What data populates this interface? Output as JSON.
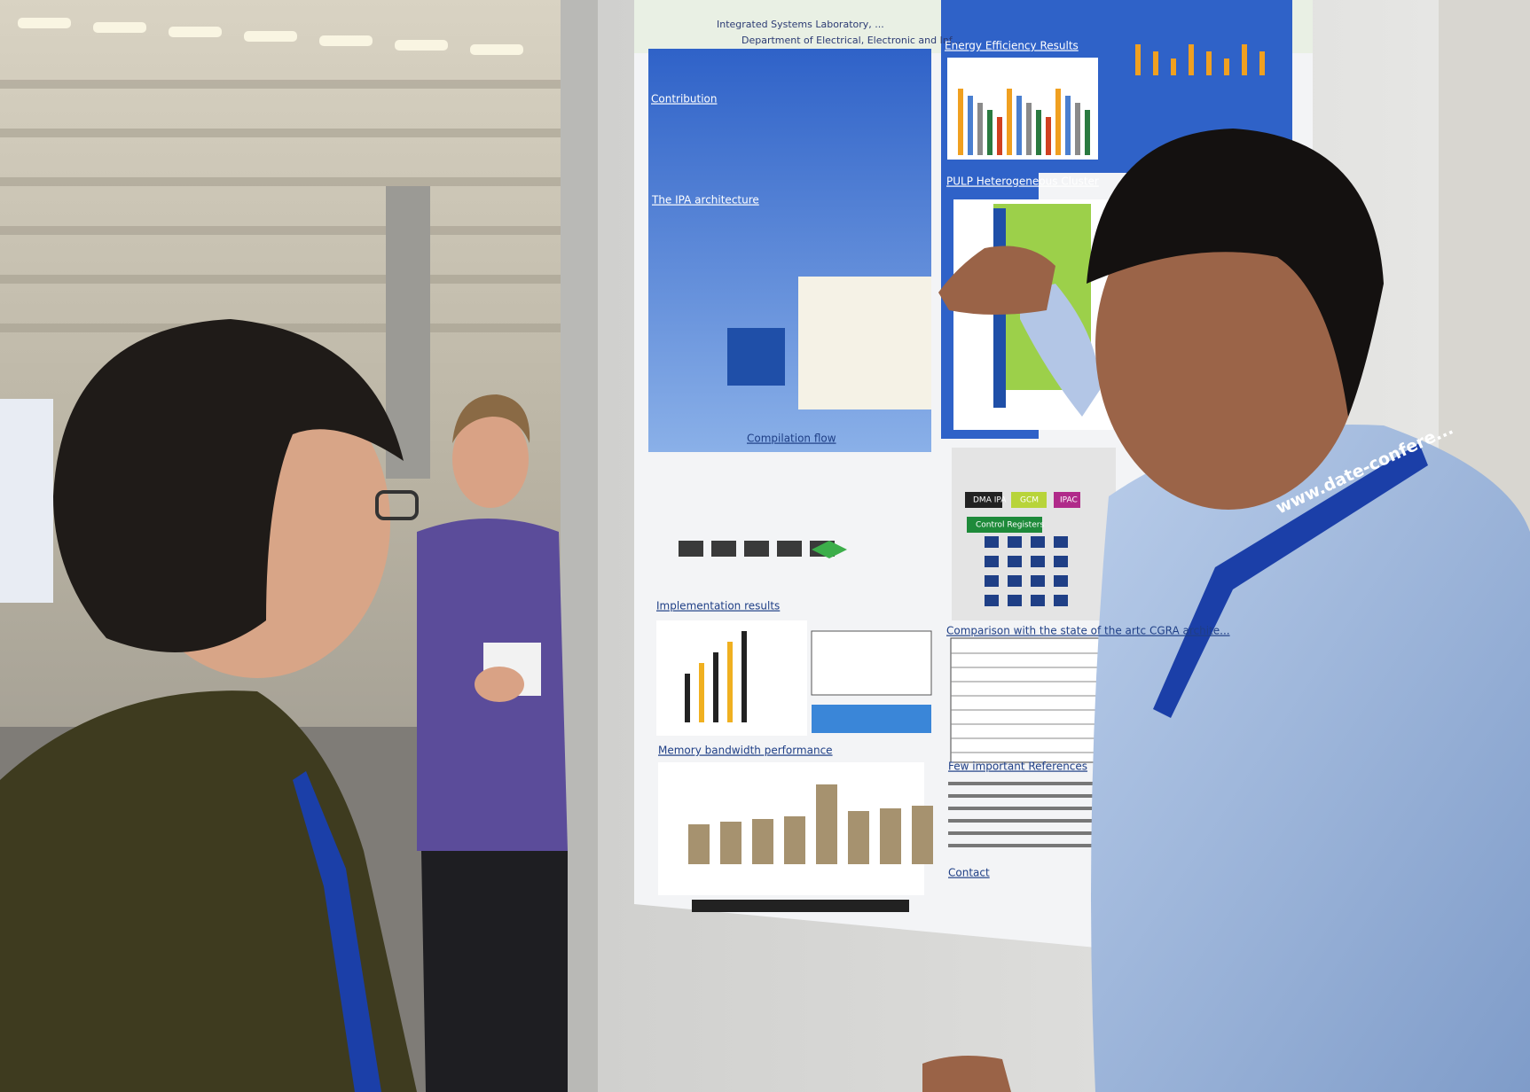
{
  "poster": {
    "header": [
      "Integrated Systems Laboratory, ...",
      "Department of Electrical, Electronic and Inf..."
    ],
    "sections": [
      "Contribution",
      "The IPA architecture",
      "Compilation flow",
      "Implementation results",
      "Memory bandwidth performance",
      "Energy Efficiency Results",
      "PULP Heterogeneous Cluster",
      "Comparison with the state of the artc CGRA archite...",
      "Few important References",
      "Contact"
    ],
    "diagram_labels": [
      "DMA IPA",
      "GCM",
      "IPAC",
      "Control Registers"
    ]
  },
  "lanyard": "www.date-confere..."
}
